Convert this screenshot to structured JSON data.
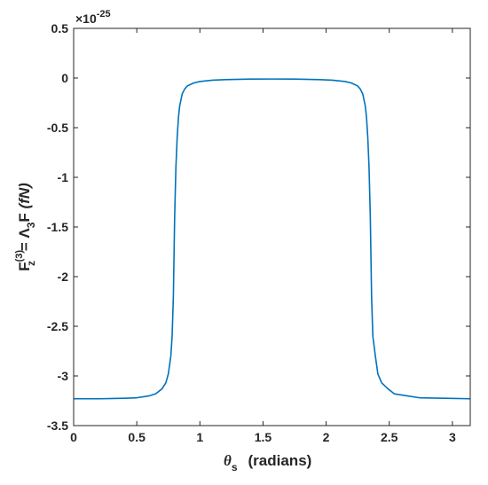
{
  "chart_data": {
    "type": "line",
    "title": "",
    "exponent_label": {
      "base": "×10",
      "power": "-25"
    },
    "xlabel": {
      "symbol": "θ",
      "subscript": "s",
      "text": "(radians)"
    },
    "ylabel": {
      "F": "F",
      "sub_z": "z",
      "sup3": "(3)",
      "eq": " = Λ",
      "sub3": "3",
      "F2": "F ",
      "unit": "(fN)"
    },
    "xlim": [
      0,
      3.1416
    ],
    "ylim": [
      -3.5,
      0.5
    ],
    "xticks": [
      0,
      0.5,
      1,
      1.5,
      2,
      2.5,
      3
    ],
    "xtick_labels": [
      "0",
      "0.5",
      "1",
      "1.5",
      "2",
      "2.5",
      "3"
    ],
    "yticks": [
      0.5,
      0,
      -0.5,
      -1,
      -1.5,
      -2,
      -2.5,
      -3,
      -3.5
    ],
    "ytick_labels": [
      "0.5",
      "0",
      "-0.5",
      "-1",
      "-1.5",
      "-2",
      "-2.5",
      "-3",
      "-3.5"
    ],
    "grid": false,
    "line_color": "#0072BD",
    "series": [
      {
        "name": "",
        "x": [
          0,
          0.2,
          0.4,
          0.5,
          0.6,
          0.65,
          0.7,
          0.73,
          0.75,
          0.77,
          0.78,
          0.79,
          0.8,
          0.81,
          0.82,
          0.83,
          0.84,
          0.86,
          0.88,
          0.9,
          0.95,
          1.0,
          1.1,
          1.2,
          1.4,
          1.5708,
          1.75,
          1.95,
          2.05,
          2.15,
          2.2,
          2.25,
          2.27,
          2.29,
          2.31,
          2.32,
          2.33,
          2.34,
          2.35,
          2.36,
          2.37,
          2.39,
          2.41,
          2.44,
          2.49,
          2.54,
          2.64,
          2.74,
          2.94,
          3.1416
        ],
        "y": [
          -3.23,
          -3.23,
          -3.225,
          -3.22,
          -3.2,
          -3.18,
          -3.13,
          -3.07,
          -2.98,
          -2.8,
          -2.6,
          -2.2,
          -1.4,
          -0.9,
          -0.6,
          -0.4,
          -0.28,
          -0.16,
          -0.11,
          -0.08,
          -0.05,
          -0.035,
          -0.022,
          -0.016,
          -0.011,
          -0.01,
          -0.011,
          -0.016,
          -0.022,
          -0.035,
          -0.05,
          -0.08,
          -0.11,
          -0.16,
          -0.28,
          -0.4,
          -0.6,
          -0.9,
          -1.4,
          -2.2,
          -2.6,
          -2.8,
          -2.98,
          -3.07,
          -3.13,
          -3.18,
          -3.2,
          -3.22,
          -3.225,
          -3.23
        ]
      }
    ]
  }
}
